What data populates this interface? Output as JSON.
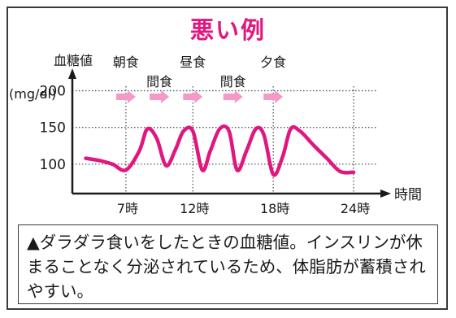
{
  "title": "悪い例",
  "note": "▲ダラダラ食いをしたときの血糖値。インスリンが休まることなく分泌されているため、体脂肪が蓄積されやすい。",
  "colors": {
    "title": "#e0177f",
    "curve": "#e0177f",
    "meal_arrow": "#f59ac6",
    "axis": "#1a1a1a"
  },
  "chart_data": {
    "type": "line",
    "title": "悪い例",
    "ylabel": "血糖値",
    "yunit": "(mg/dl)",
    "xlabel": "時間",
    "ylim": [
      60,
      215
    ],
    "xlim": [
      3,
      26
    ],
    "yticks": [
      100,
      150,
      200
    ],
    "xticks": [
      {
        "value": 7,
        "label": "7時"
      },
      {
        "value": 12,
        "label": "12時"
      },
      {
        "value": 18,
        "label": "18時"
      },
      {
        "value": 24,
        "label": "24時"
      }
    ],
    "meals": [
      {
        "label": "朝食",
        "time": 7,
        "row": "upper"
      },
      {
        "label": "間食",
        "time": 9.5,
        "row": "lower"
      },
      {
        "label": "昼食",
        "time": 12,
        "row": "upper"
      },
      {
        "label": "間食",
        "time": 15,
        "row": "lower"
      },
      {
        "label": "夕食",
        "time": 18,
        "row": "upper"
      }
    ],
    "grid": "dotted",
    "series": [
      {
        "x": [
          4,
          5,
          6,
          7,
          8,
          8.6,
          9.3,
          10,
          10.7,
          11.3,
          12,
          12.7,
          13.3,
          14,
          14.7,
          15.3,
          16,
          16.7,
          17.3,
          18,
          18.7,
          19.3,
          20,
          21,
          22,
          23,
          24
        ],
        "y": [
          108,
          105,
          100,
          92,
          118,
          148,
          135,
          98,
          120,
          145,
          145,
          92,
          118,
          148,
          145,
          92,
          118,
          148,
          140,
          86,
          110,
          148,
          145,
          126,
          108,
          90,
          89
        ]
      }
    ]
  }
}
